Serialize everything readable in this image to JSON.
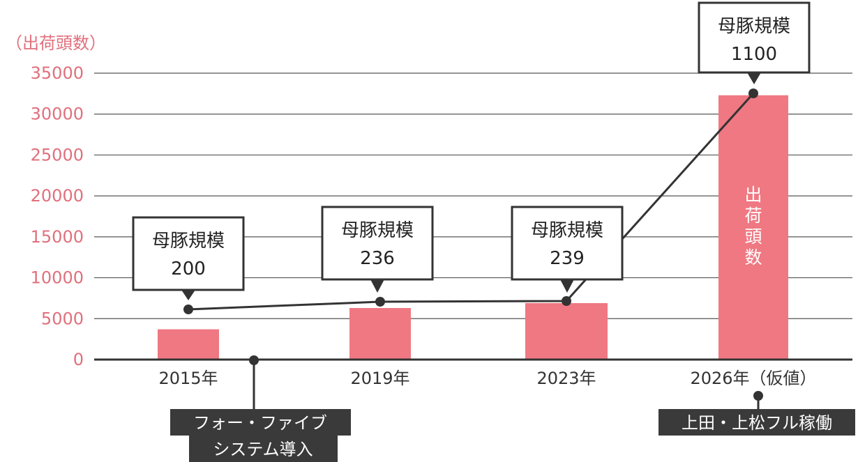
{
  "chart_data": {
    "type": "bar",
    "ylabel": "（出荷頭数）",
    "ylim": [
      0,
      35000
    ],
    "yticks": [
      "0",
      "5000",
      "10000",
      "15000",
      "20000",
      "25000",
      "30000",
      "35000"
    ],
    "categories": [
      "2015年",
      "2019年",
      "2023年",
      "2026年（仮値）"
    ],
    "values": [
      3700,
      6300,
      6900,
      32300
    ],
    "bar_color": "#ef7882",
    "bar_label": "出荷頭数",
    "grid": true,
    "line_series": {
      "name": "母豚規模",
      "values": [
        200,
        236,
        239,
        1100
      ],
      "callouts": [
        {
          "title": "母豚規模",
          "value": "200"
        },
        {
          "title": "母豚規模",
          "value": "236"
        },
        {
          "title": "母豚規模",
          "value": "239"
        },
        {
          "title": "母豚規模",
          "value": "1100"
        }
      ]
    },
    "events": [
      {
        "lines": [
          "フォー・ファイブ",
          "システム導入"
        ]
      },
      {
        "lines": [
          "上田・上松フル稼働"
        ]
      }
    ]
  }
}
